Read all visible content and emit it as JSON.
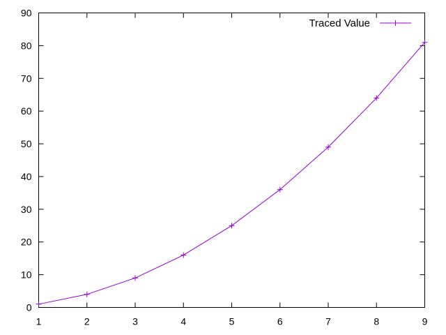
{
  "chart_data": {
    "type": "line",
    "title": "",
    "xlabel": "",
    "ylabel": "",
    "x": [
      1,
      2,
      3,
      4,
      5,
      6,
      7,
      8,
      9
    ],
    "series": [
      {
        "name": "Traced Value",
        "values": [
          1,
          4,
          9,
          16,
          25,
          36,
          49,
          64,
          81
        ],
        "color": "#9400d3",
        "marker": "plus"
      }
    ],
    "xlim": [
      1,
      9
    ],
    "ylim": [
      0,
      90
    ],
    "xticks": [
      1,
      2,
      3,
      4,
      5,
      6,
      7,
      8,
      9
    ],
    "yticks": [
      0,
      10,
      20,
      30,
      40,
      50,
      60,
      70,
      80,
      90
    ],
    "grid": false,
    "legend_position": "top-right"
  }
}
